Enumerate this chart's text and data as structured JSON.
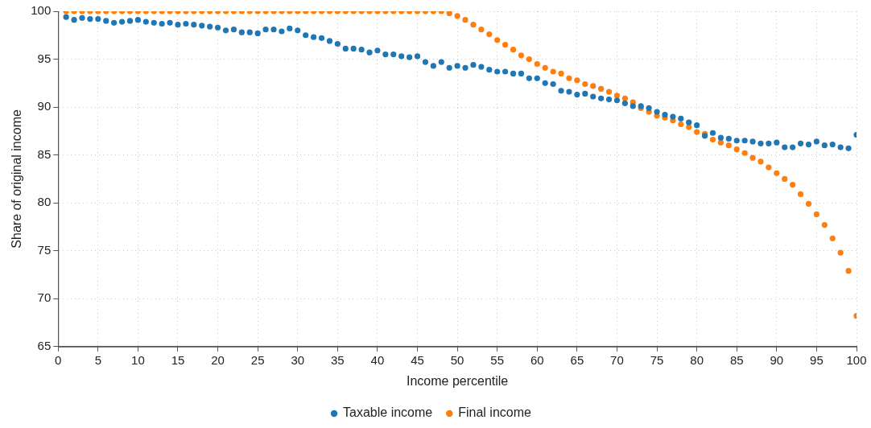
{
  "chart_data": {
    "type": "scatter",
    "xlabel": "Income percentile",
    "ylabel": "Share of original income",
    "xlim": [
      0,
      100
    ],
    "xticks": [
      0,
      5,
      10,
      15,
      20,
      25,
      30,
      35,
      40,
      45,
      50,
      55,
      60,
      65,
      70,
      75,
      80,
      85,
      90,
      95,
      100
    ],
    "ylim": [
      65,
      100
    ],
    "yticks": [
      65,
      70,
      75,
      80,
      85,
      90,
      95,
      100
    ],
    "grid": true,
    "legend": "bottom",
    "marker": "circle",
    "x": [
      1,
      2,
      3,
      4,
      5,
      6,
      7,
      8,
      9,
      10,
      11,
      12,
      13,
      14,
      15,
      16,
      17,
      18,
      19,
      20,
      21,
      22,
      23,
      24,
      25,
      26,
      27,
      28,
      29,
      30,
      31,
      32,
      33,
      34,
      35,
      36,
      37,
      38,
      39,
      40,
      41,
      42,
      43,
      44,
      45,
      46,
      47,
      48,
      49,
      50,
      51,
      52,
      53,
      54,
      55,
      56,
      57,
      58,
      59,
      60,
      61,
      62,
      63,
      64,
      65,
      66,
      67,
      68,
      69,
      70,
      71,
      72,
      73,
      74,
      75,
      76,
      77,
      78,
      79,
      80,
      81,
      82,
      83,
      84,
      85,
      86,
      87,
      88,
      89,
      90,
      91,
      92,
      93,
      94,
      95,
      96,
      97,
      98,
      99,
      100
    ],
    "series": [
      {
        "name": "Taxable income",
        "color": "#1f77b4",
        "values": [
          99.4,
          99.1,
          99.3,
          99.2,
          99.2,
          99.0,
          98.8,
          98.9,
          99.0,
          99.1,
          98.9,
          98.8,
          98.7,
          98.8,
          98.6,
          98.7,
          98.6,
          98.5,
          98.4,
          98.3,
          98.0,
          98.1,
          97.8,
          97.8,
          97.7,
          98.1,
          98.1,
          97.9,
          98.2,
          98.0,
          97.5,
          97.3,
          97.2,
          96.9,
          96.6,
          96.1,
          96.1,
          96.0,
          95.7,
          95.9,
          95.5,
          95.5,
          95.3,
          95.2,
          95.3,
          94.7,
          94.3,
          94.7,
          94.1,
          94.3,
          94.1,
          94.4,
          94.2,
          93.9,
          93.7,
          93.7,
          93.5,
          93.5,
          93.0,
          93.0,
          92.5,
          92.4,
          91.7,
          91.6,
          91.3,
          91.4,
          91.1,
          90.9,
          90.8,
          90.7,
          90.4,
          90.1,
          90.1,
          89.9,
          89.5,
          89.2,
          89.0,
          88.8,
          88.4,
          88.1,
          87.0,
          87.3,
          86.8,
          86.7,
          86.5,
          86.5,
          86.4,
          86.2,
          86.2,
          86.3,
          85.8,
          85.8,
          86.2,
          86.1,
          86.4,
          86.0,
          86.1,
          85.8,
          85.7,
          87.1
        ]
      },
      {
        "name": "Final income",
        "color": "#ff7f0e",
        "values": [
          100,
          100,
          100,
          100,
          100,
          100,
          100,
          100,
          100,
          100,
          100,
          100,
          100,
          100,
          100,
          100,
          100,
          100,
          100,
          100,
          100,
          100,
          100,
          100,
          100,
          100,
          100,
          100,
          100,
          100,
          100,
          100,
          100,
          100,
          100,
          100,
          100,
          100,
          100,
          100,
          100,
          100,
          100,
          100,
          100,
          100,
          100,
          100,
          99.8,
          99.5,
          99.1,
          98.6,
          98.1,
          97.6,
          97.0,
          96.5,
          96.0,
          95.4,
          95.0,
          94.5,
          94.1,
          93.7,
          93.5,
          93.0,
          92.8,
          92.4,
          92.2,
          91.9,
          91.6,
          91.2,
          90.9,
          90.5,
          89.9,
          89.5,
          89.1,
          88.9,
          88.6,
          88.2,
          87.9,
          87.4,
          87.2,
          86.6,
          86.3,
          86.0,
          85.6,
          85.2,
          84.7,
          84.3,
          83.7,
          83.1,
          82.5,
          81.9,
          80.9,
          79.9,
          78.8,
          77.7,
          76.3,
          74.8,
          72.9,
          68.2
        ]
      }
    ]
  }
}
